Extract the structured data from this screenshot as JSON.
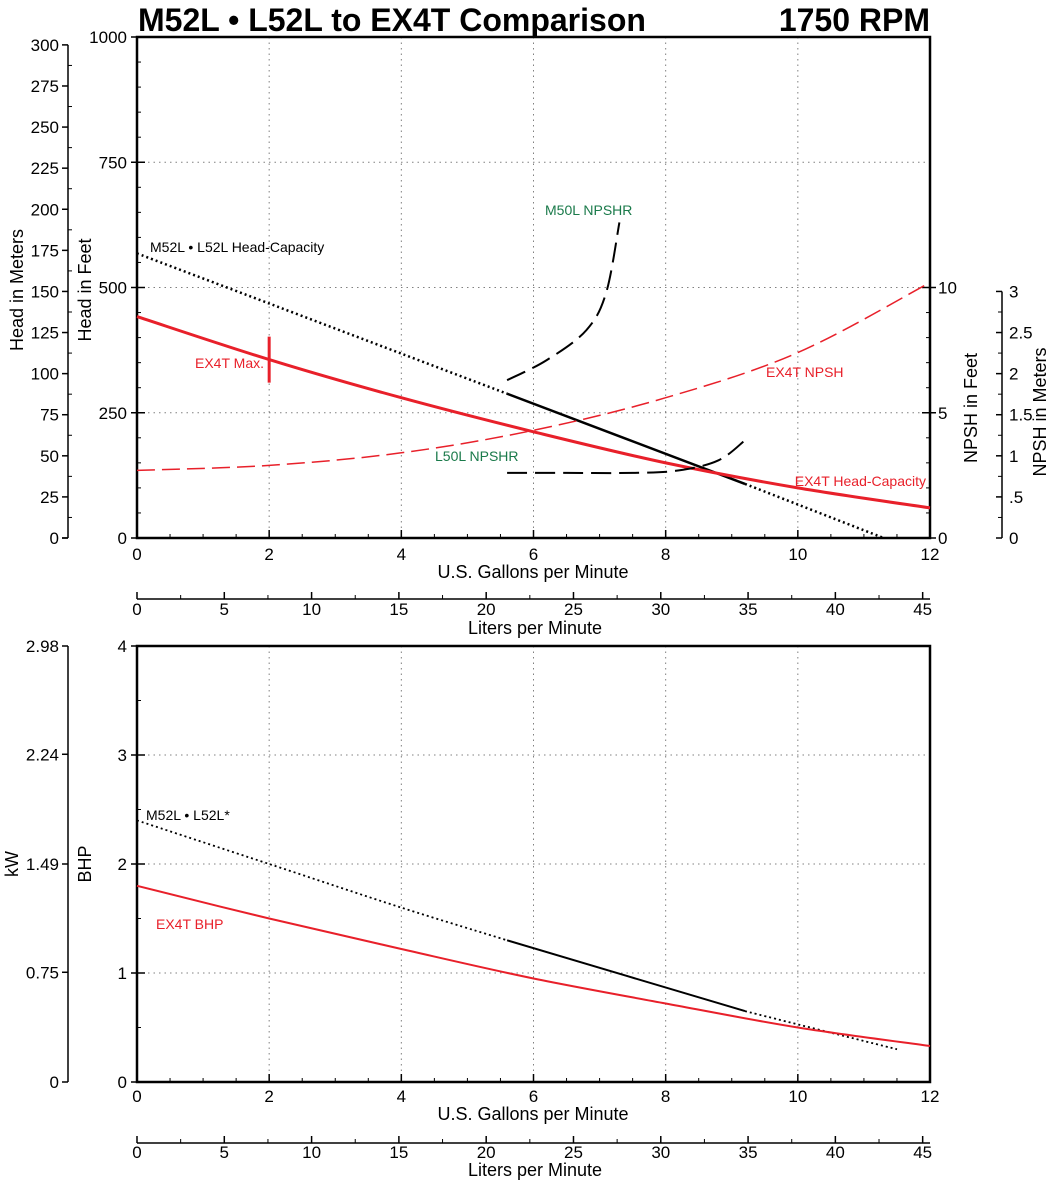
{
  "title": "M52L • L52L to EX4T Comparison",
  "rpm": "1750 RPM",
  "colors": {
    "ex4t": "#e8202a",
    "m52l": "#000000",
    "npshr": "#000000",
    "annotation_green": "#1a7a4a",
    "grid": "#808080"
  },
  "chart_data": [
    {
      "type": "line",
      "panel": "head",
      "title": "M52L • L52L to EX4T Comparison",
      "xlabel": "U.S. Gallons per Minute",
      "xlim": [
        0,
        12
      ],
      "x_ticks": [
        "0",
        "2",
        "4",
        "6",
        "8",
        "10",
        "12"
      ],
      "x2label": "Liters per Minute",
      "x2lim": [
        0,
        45.42
      ],
      "x2_ticks": [
        "0",
        "5",
        "10",
        "15",
        "20",
        "25",
        "30",
        "35",
        "40",
        "45"
      ],
      "ylabel": "Head in Feet",
      "ylim": [
        0,
        1000
      ],
      "y_ticks": [
        "0",
        "250",
        "500",
        "750",
        "1000"
      ],
      "y_meters_label": "Head in Meters",
      "y_meters_lim": [
        0,
        304.8
      ],
      "y_meters_ticks": [
        "0",
        "25",
        "50",
        "75",
        "100",
        "125",
        "150",
        "175",
        "200",
        "225",
        "250",
        "275",
        "300"
      ],
      "y_right_label": "NPSH in Feet",
      "y_right_lim": [
        0,
        20
      ],
      "y_right_ticks": [
        "0",
        "5",
        "10"
      ],
      "y_right2_label": "NPSH in Meters",
      "y_right2_lim": [
        0,
        6.096
      ],
      "y_right2_ticks": [
        "0",
        ".5",
        "1",
        "1.5",
        "2",
        "2.5",
        "3"
      ],
      "grid": true,
      "series": [
        {
          "name": "M52L • L52L Head-Capacity",
          "axis": "left",
          "x": [
            0,
            2,
            4,
            5.6,
            9.2,
            11.3
          ],
          "y": [
            568,
            468,
            368,
            288,
            108,
            0
          ]
        },
        {
          "name": "EX4T Head-Capacity",
          "axis": "left",
          "x": [
            0,
            2,
            4,
            6,
            8,
            10,
            12
          ],
          "y": [
            442,
            356,
            280,
            212,
            150,
            100,
            60
          ]
        },
        {
          "name": "EX4T NPSH",
          "axis": "right",
          "x": [
            0,
            2,
            4,
            6,
            8,
            10,
            12
          ],
          "y": [
            2.7,
            2.9,
            3.4,
            4.3,
            5.6,
            7.4,
            10.2
          ]
        },
        {
          "name": "M50L NPSHR",
          "axis": "right",
          "x": [
            5.6,
            6.2,
            6.8,
            7.1,
            7.3
          ],
          "y": [
            6.3,
            7.1,
            8.3,
            9.8,
            12.6
          ]
        },
        {
          "name": "L50L NPSHR",
          "axis": "right",
          "x": [
            5.6,
            6.5,
            7.5,
            8.2,
            8.8,
            9.2
          ],
          "y": [
            2.6,
            2.6,
            2.6,
            2.7,
            3.1,
            3.9
          ]
        }
      ],
      "annotations": {
        "m52l_head": "M52L • L52L Head-Capacity",
        "ex4t_head": "EX4T Head-Capacity",
        "ex4t_npsh": "EX4T NPSH",
        "m50l_npshr": "M50L NPSHR",
        "l50l_npshr": "L50L NPSHR",
        "ex4t_max": "EX4T Max."
      },
      "ex4t_max_flow": 2
    },
    {
      "type": "line",
      "panel": "power",
      "xlabel": "U.S. Gallons per Minute",
      "xlim": [
        0,
        12
      ],
      "x_ticks": [
        "0",
        "2",
        "4",
        "6",
        "8",
        "10",
        "12"
      ],
      "x2label": "Liters per Minute",
      "x2lim": [
        0,
        45.42
      ],
      "x2_ticks": [
        "0",
        "5",
        "10",
        "15",
        "20",
        "25",
        "30",
        "35",
        "40",
        "45"
      ],
      "ylabel": "BHP",
      "ylim": [
        0,
        4
      ],
      "y_ticks": [
        "0",
        "1",
        "2",
        "3",
        "4"
      ],
      "y_kw_label": "kW",
      "y_kw_lim": [
        0,
        2.98
      ],
      "y_kw_ticks": [
        "0",
        "0.75",
        "1.49",
        "2.24",
        "2.98"
      ],
      "grid": true,
      "series": [
        {
          "name": "M52L • L52L*",
          "x": [
            0,
            2,
            4,
            5.6,
            9.2,
            11.5
          ],
          "y": [
            2.4,
            2.0,
            1.6,
            1.3,
            0.65,
            0.3
          ]
        },
        {
          "name": "EX4T BHP",
          "x": [
            0,
            2,
            4,
            6,
            8,
            10,
            12
          ],
          "y": [
            1.8,
            1.5,
            1.22,
            0.95,
            0.72,
            0.5,
            0.33
          ]
        }
      ],
      "annotations": {
        "m52l_bhp": "M52L • L52L*",
        "ex4t_bhp": "EX4T BHP"
      }
    }
  ]
}
